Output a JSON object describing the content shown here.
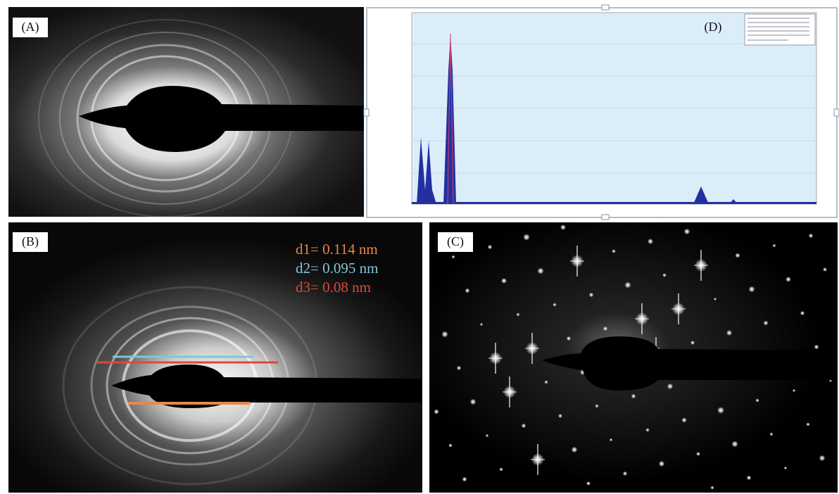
{
  "panels": [
    {
      "label": "(A)"
    },
    {
      "label": "(D)"
    },
    {
      "label": "(B)",
      "annotations": [
        "d1= 0.114 nm",
        "d2= 0.095 nm",
        "d3= 0.08 nm"
      ]
    },
    {
      "label": "(C)"
    }
  ]
}
